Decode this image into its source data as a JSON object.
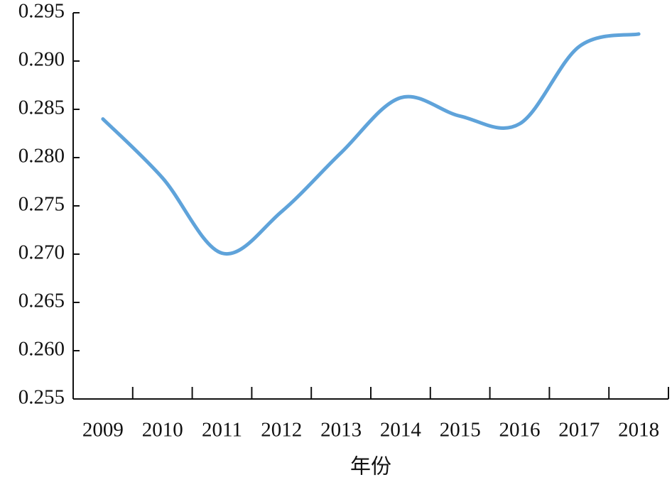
{
  "chart_data": {
    "type": "line",
    "x_label": "年份",
    "categories": [
      "2009",
      "2010",
      "2011",
      "2012",
      "2013",
      "2014",
      "2015",
      "2016",
      "2017",
      "2018"
    ],
    "series": [
      {
        "color": "#5fa3da",
        "values": [
          0.284,
          0.2779,
          0.2701,
          0.2744,
          0.2805,
          0.2862,
          0.2843,
          0.2835,
          0.2915,
          0.2928
        ]
      }
    ],
    "ylim": [
      0.255,
      0.295
    ],
    "yticks": [
      0.255,
      {
        "value": 0.26,
        "label": "0.260"
      },
      0.265,
      {
        "value": 0.27,
        "label": "0.270"
      },
      0.275,
      {
        "value": 0.28,
        "label": "0.280"
      },
      0.285,
      {
        "value": 0.29,
        "label": "0.290"
      },
      0.295
    ],
    "grid": false
  }
}
